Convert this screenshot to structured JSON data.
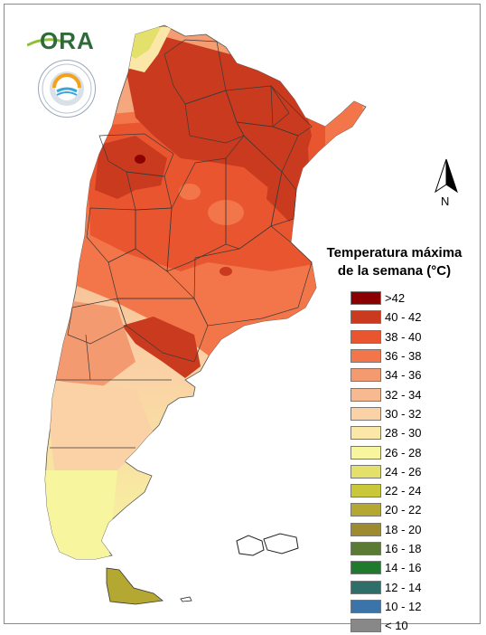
{
  "legend": {
    "title_line1": "Temperatura máxima",
    "title_line2": "de la semana (°C)",
    "items": [
      {
        "label": ">42",
        "color": "#8b0000"
      },
      {
        "label": "40 - 42",
        "color": "#c93a1e"
      },
      {
        "label": "38 - 40",
        "color": "#e8552f"
      },
      {
        "label": "36 - 38",
        "color": "#f2764a"
      },
      {
        "label": "34 - 36",
        "color": "#f49a70"
      },
      {
        "label": "32 - 34",
        "color": "#f7b98f"
      },
      {
        "label": "30 - 32",
        "color": "#fad2a6"
      },
      {
        "label": "28 - 30",
        "color": "#fbe7a8"
      },
      {
        "label": "26 - 28",
        "color": "#f7f59e"
      },
      {
        "label": "24 - 26",
        "color": "#e3e06b"
      },
      {
        "label": "22 - 24",
        "color": "#c9c83a"
      },
      {
        "label": "20 - 22",
        "color": "#b4a833"
      },
      {
        "label": "18 - 20",
        "color": "#9e8a2f"
      },
      {
        "label": "16 - 18",
        "color": "#5b7a34"
      },
      {
        "label": "14 - 16",
        "color": "#1f7a2e"
      },
      {
        "label": "12 - 14",
        "color": "#2f6f6a"
      },
      {
        "label": "10 - 12",
        "color": "#3b74a8"
      },
      {
        "label": "< 10",
        "color": "#888888"
      }
    ]
  },
  "north_arrow": {
    "letter": "N",
    "icon": "north-arrow-icon"
  },
  "logos": {
    "ora_text": "ORA",
    "seal_icon": "smn-seal-icon"
  }
}
